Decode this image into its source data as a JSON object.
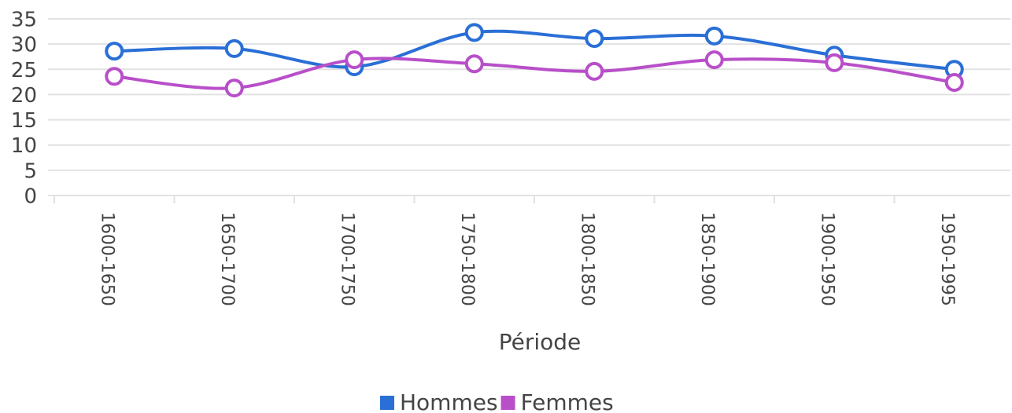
{
  "chart_data": {
    "type": "line",
    "categories": [
      "1600-1650",
      "1650-1700",
      "1700-1750",
      "1750-1800",
      "1800-1850",
      "1850-1900",
      "1900-1950",
      "1950-1995"
    ],
    "series": [
      {
        "name": "Hommes",
        "color": "#2a6fd6",
        "values": [
          28.6,
          29.1,
          25.5,
          32.3,
          31.1,
          31.6,
          27.8,
          25.0
        ]
      },
      {
        "name": "Femmes",
        "color": "#b84fc9",
        "values": [
          23.6,
          21.3,
          26.9,
          26.1,
          24.6,
          26.9,
          26.3,
          22.4
        ]
      }
    ],
    "x_label": "Période",
    "ylim": [
      0,
      35
    ],
    "yticks": [
      0,
      5,
      10,
      15,
      20,
      25,
      30,
      35
    ],
    "grid": true,
    "legend": "bottom"
  }
}
